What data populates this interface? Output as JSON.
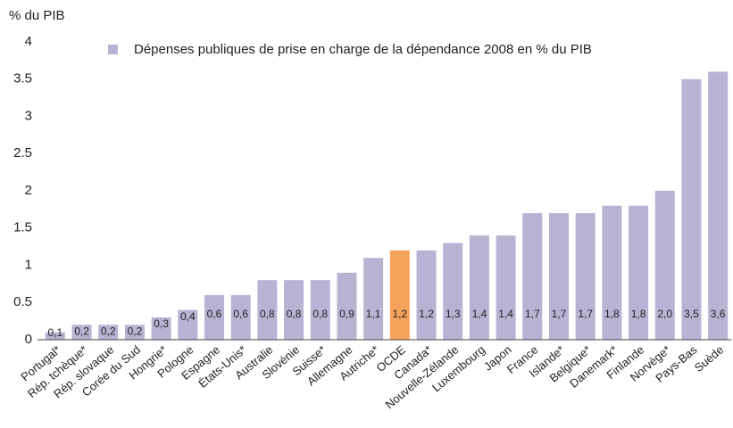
{
  "chart_data": {
    "type": "bar",
    "y_label": "% du PIB",
    "legend": "Dépenses publiques de prise en charge de la dépendance 2008 en % du PIB",
    "categories": [
      "Portugal*",
      "Rép. tchèque*",
      "Rép. slovaque",
      "Corée du Sud",
      "Hongrie*",
      "Pologne",
      "Espagne",
      "États-Unis*",
      "Australie",
      "Slovénie",
      "Suisse*",
      "Allemagne",
      "Autriche*",
      "OCDE",
      "Canada*",
      "Nouvelle-Zélande",
      "Luxembourg",
      "Japon",
      "France",
      "Islande*",
      "Belgique*",
      "Danemark*",
      "Finlande",
      "Norvège*",
      "Pays-Bas",
      "Suède"
    ],
    "values": [
      0.1,
      0.2,
      0.2,
      0.2,
      0.3,
      0.4,
      0.6,
      0.6,
      0.8,
      0.8,
      0.8,
      0.9,
      1.1,
      1.2,
      1.2,
      1.3,
      1.4,
      1.4,
      1.7,
      1.7,
      1.7,
      1.8,
      1.8,
      2.0,
      3.5,
      3.6
    ],
    "value_labels": [
      "0,1",
      "0,2",
      "0,2",
      "0,2",
      "0,3",
      "0,4",
      "0,6",
      "0,6",
      "0,8",
      "0,8",
      "0,8",
      "0,9",
      "1,1",
      "1,2",
      "1,2",
      "1,3",
      "1,4",
      "1,4",
      "1,7",
      "1,7",
      "1,7",
      "1,8",
      "1,8",
      "2,0",
      "3,5",
      "3,6"
    ],
    "color": "#b8b3d3",
    "highlight_color": "#f4a25c",
    "highlight_category": "OCDE",
    "ylim": [
      0,
      4
    ],
    "yticks": [
      0,
      0.5,
      1,
      1.5,
      2,
      2.5,
      3,
      3.5,
      4
    ],
    "grid": false
  }
}
